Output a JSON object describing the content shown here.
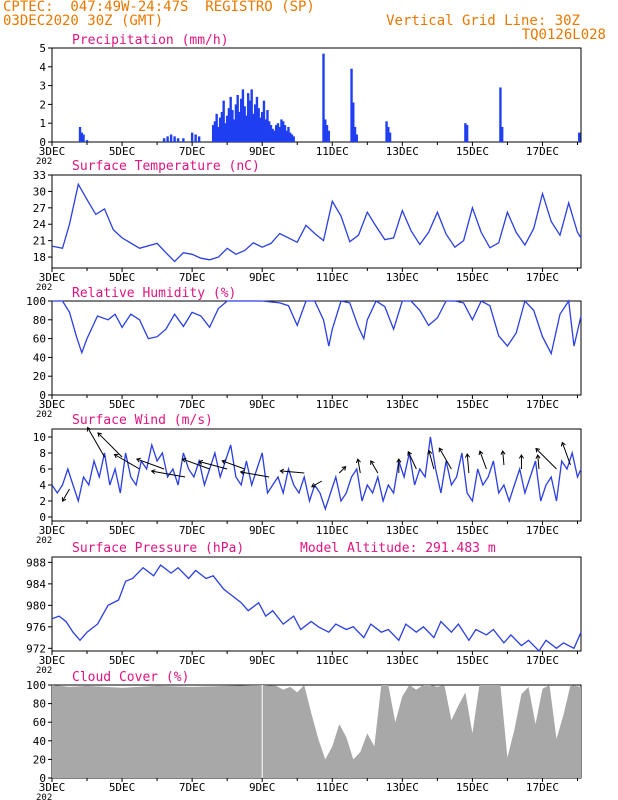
{
  "header": {
    "line1_left": "CPTEC:  047:49W-24:47S  REGISTRO (SP)",
    "line2_left": "03DEC2020 30Z (GMT)",
    "line2_right": "Vertical Grid Line: 30Z",
    "line3_right": "TQ0126L028"
  },
  "colors": {
    "header": "#e87800",
    "panel_title": "#e0147f",
    "series": "#2b3fe0",
    "cloud": "#a8a8a8",
    "bar": "#1f3ff0"
  },
  "x_axis": {
    "range_days": [
      3,
      18.1
    ],
    "labels": [
      "3DEC",
      "5DEC",
      "7DEC",
      "9DEC",
      "11DEC",
      "13DEC",
      "15DEC",
      "17DEC"
    ],
    "label_days": [
      3,
      5,
      7,
      9,
      11,
      13,
      15,
      17
    ],
    "year_fragment": "202"
  },
  "chart_data": [
    {
      "id": "precip",
      "type": "bar",
      "title": "Precipitation (mm/h)",
      "ylim": [
        0,
        5
      ],
      "yticks": [
        0,
        1,
        2,
        3,
        4,
        5
      ],
      "x": [
        3.8,
        3.85,
        3.9,
        4.0,
        6.2,
        6.3,
        6.4,
        6.5,
        6.6,
        6.75,
        7.0,
        7.1,
        7.2,
        7.6,
        7.65,
        7.7,
        7.75,
        7.8,
        7.85,
        7.9,
        7.95,
        8.0,
        8.05,
        8.1,
        8.15,
        8.2,
        8.25,
        8.3,
        8.35,
        8.4,
        8.45,
        8.5,
        8.55,
        8.6,
        8.65,
        8.7,
        8.75,
        8.8,
        8.85,
        8.9,
        8.95,
        9.0,
        9.05,
        9.1,
        9.15,
        9.2,
        9.25,
        9.3,
        9.35,
        9.4,
        9.45,
        9.5,
        9.55,
        9.6,
        9.65,
        9.7,
        9.75,
        9.8,
        9.85,
        9.9,
        10.75,
        10.8,
        10.85,
        10.9,
        11.55,
        11.6,
        11.65,
        11.7,
        12.55,
        12.6,
        12.65,
        14.8,
        14.85,
        15.8,
        15.85,
        18.05
      ],
      "values": [
        0.8,
        0.5,
        0.4,
        0.1,
        0.2,
        0.3,
        0.4,
        0.3,
        0.2,
        0.2,
        0.5,
        0.4,
        0.3,
        0.9,
        1.1,
        1.5,
        0.8,
        1.3,
        1.6,
        2.2,
        1.0,
        1.4,
        1.8,
        2.4,
        1.7,
        1.2,
        2.0,
        2.5,
        1.6,
        2.3,
        2.8,
        1.9,
        1.4,
        2.6,
        2.2,
        2.8,
        1.5,
        2.0,
        2.4,
        1.8,
        1.3,
        1.6,
        2.2,
        1.2,
        1.7,
        1.1,
        0.9,
        0.7,
        0.6,
        0.9,
        1.0,
        0.8,
        1.2,
        1.1,
        0.9,
        0.6,
        0.8,
        0.5,
        0.4,
        0.3,
        4.7,
        1.2,
        0.9,
        0.6,
        3.9,
        2.1,
        0.8,
        0.4,
        1.1,
        0.8,
        0.5,
        1.0,
        0.9,
        2.9,
        0.8,
        0.5
      ]
    },
    {
      "id": "temp",
      "type": "line",
      "title": "Surface Temperature (nC)",
      "ylim": [
        16,
        33
      ],
      "yticks": [
        18,
        21,
        24,
        27,
        30,
        33
      ],
      "x": [
        3.0,
        3.3,
        3.5,
        3.75,
        4.0,
        4.25,
        4.5,
        4.75,
        5.0,
        5.5,
        6.0,
        6.25,
        6.5,
        6.75,
        7.0,
        7.25,
        7.5,
        7.75,
        8.0,
        8.25,
        8.5,
        8.75,
        9.0,
        9.25,
        9.5,
        9.75,
        10.0,
        10.25,
        10.5,
        10.75,
        11.0,
        11.25,
        11.5,
        11.75,
        12.0,
        12.25,
        12.5,
        12.75,
        13.0,
        13.25,
        13.5,
        13.75,
        14.0,
        14.25,
        14.5,
        14.75,
        15.0,
        15.25,
        15.5,
        15.75,
        16.0,
        16.25,
        16.5,
        16.75,
        17.0,
        17.25,
        17.5,
        17.75,
        18.0,
        18.1
      ],
      "values": [
        20,
        19.6,
        24,
        31.3,
        28.5,
        25.8,
        26.8,
        23,
        21.5,
        19.6,
        20.5,
        18.8,
        17.2,
        18.8,
        18.5,
        17.8,
        17.5,
        18,
        19.6,
        18.5,
        19.2,
        20.6,
        19.8,
        20.5,
        22.3,
        21.5,
        20.7,
        23.8,
        22.3,
        21.0,
        28.2,
        25.5,
        20.8,
        22.0,
        26.2,
        23.6,
        21.2,
        21.5,
        26.5,
        22.8,
        20.3,
        22.5,
        26.2,
        22.2,
        19.8,
        21.0,
        27.0,
        22.5,
        19.7,
        20.6,
        26.2,
        22.5,
        20.2,
        23.2,
        29.6,
        24.5,
        22.0,
        27.9,
        22.5,
        21.5
      ]
    },
    {
      "id": "rh",
      "type": "line",
      "title": "Relative Humidity (%)",
      "ylim": [
        0,
        100
      ],
      "yticks": [
        0,
        20,
        40,
        60,
        80,
        100
      ],
      "x": [
        3.0,
        3.3,
        3.5,
        3.7,
        3.85,
        4.0,
        4.3,
        4.6,
        4.8,
        5.0,
        5.25,
        5.5,
        5.75,
        6.0,
        6.25,
        6.5,
        6.75,
        7.0,
        7.25,
        7.5,
        7.75,
        8.0,
        8.5,
        9.0,
        9.5,
        9.75,
        10.0,
        10.25,
        10.5,
        10.75,
        10.9,
        11.0,
        11.25,
        11.5,
        11.75,
        11.9,
        12.0,
        12.25,
        12.5,
        12.75,
        13.0,
        13.25,
        13.5,
        13.75,
        14.0,
        14.25,
        14.5,
        14.75,
        15.0,
        15.25,
        15.5,
        15.75,
        16.0,
        16.25,
        16.5,
        16.75,
        17.0,
        17.25,
        17.5,
        17.75,
        17.9,
        18.1
      ],
      "values": [
        100,
        100,
        88,
        62,
        45,
        60,
        84,
        80,
        86,
        72,
        86,
        80,
        60,
        62,
        70,
        86,
        73,
        88,
        84,
        72,
        92,
        100,
        100,
        100,
        98,
        95,
        74,
        100,
        100,
        80,
        52,
        70,
        100,
        98,
        72,
        60,
        80,
        100,
        94,
        70,
        100,
        100,
        90,
        74,
        82,
        100,
        100,
        98,
        80,
        100,
        95,
        63,
        52,
        66,
        100,
        90,
        62,
        44,
        86,
        100,
        52,
        84
      ]
    },
    {
      "id": "wind",
      "type": "line",
      "title": "Surface Wind (m/s)",
      "ylim": [
        -0.5,
        11
      ],
      "yticks": [
        0,
        2,
        4,
        6,
        8,
        10
      ],
      "x": [
        3.0,
        3.15,
        3.3,
        3.45,
        3.6,
        3.75,
        3.9,
        4.05,
        4.2,
        4.35,
        4.5,
        4.65,
        4.8,
        4.95,
        5.1,
        5.25,
        5.4,
        5.55,
        5.7,
        5.85,
        6.0,
        6.15,
        6.3,
        6.45,
        6.6,
        6.75,
        6.9,
        7.05,
        7.2,
        7.35,
        7.5,
        7.65,
        7.8,
        7.95,
        8.1,
        8.25,
        8.4,
        8.55,
        8.7,
        8.85,
        9.0,
        9.15,
        9.3,
        9.45,
        9.6,
        9.75,
        9.9,
        10.05,
        10.2,
        10.35,
        10.5,
        10.65,
        10.8,
        10.95,
        11.1,
        11.25,
        11.4,
        11.55,
        11.7,
        11.85,
        12.0,
        12.15,
        12.3,
        12.45,
        12.6,
        12.75,
        12.9,
        13.05,
        13.2,
        13.35,
        13.5,
        13.65,
        13.8,
        13.95,
        14.1,
        14.25,
        14.4,
        14.55,
        14.7,
        14.85,
        15.0,
        15.15,
        15.3,
        15.45,
        15.6,
        15.75,
        15.9,
        16.05,
        16.2,
        16.35,
        16.5,
        16.65,
        16.8,
        16.95,
        17.1,
        17.25,
        17.4,
        17.55,
        17.7,
        17.85,
        18.0,
        18.1
      ],
      "values": [
        4,
        3,
        4,
        6,
        4,
        2,
        5,
        4,
        7,
        5,
        8,
        4,
        6,
        3,
        8,
        5,
        4,
        7,
        6,
        9,
        7,
        8,
        5,
        6,
        4,
        8,
        6,
        5,
        7,
        4,
        6,
        8,
        5,
        7,
        9,
        5,
        4,
        7,
        4,
        6,
        8,
        3,
        4,
        5,
        3,
        6,
        4,
        3,
        5,
        2,
        4,
        3,
        1,
        3,
        5,
        2,
        3,
        5,
        6,
        2,
        4,
        3,
        5,
        2,
        4,
        3,
        7,
        5,
        8,
        4,
        6,
        5,
        10,
        6,
        3,
        7,
        4,
        5,
        8,
        3,
        2,
        6,
        4,
        5,
        7,
        3,
        4,
        2,
        4,
        6,
        3,
        5,
        7,
        2,
        4,
        5,
        2,
        7,
        6,
        8,
        5,
        6
      ]
    },
    {
      "id": "wind_vectors",
      "type": "scatter",
      "x": [
        3.5,
        4.5,
        5.0,
        5.5,
        6.2,
        6.8,
        7.5,
        8.0,
        8.5,
        9.2,
        10.2,
        10.7,
        11.2,
        11.8,
        12.3,
        12.9,
        13.4,
        13.9,
        14.4,
        14.9,
        15.4,
        15.9,
        16.4,
        16.9,
        17.4,
        17.8
      ],
      "y": [
        3.5,
        7.5,
        7.5,
        6,
        6,
        5,
        6,
        6,
        6,
        5,
        5.5,
        4.5,
        5.5,
        5.5,
        5.5,
        5.5,
        6,
        6,
        6,
        5.5,
        6,
        6.5,
        6,
        6,
        6,
        6.5
      ],
      "angle_deg": [
        240,
        120,
        135,
        150,
        160,
        170,
        160,
        165,
        160,
        170,
        175,
        210,
        45,
        100,
        120,
        90,
        115,
        105,
        120,
        95,
        110,
        95,
        90,
        95,
        135,
        110
      ],
      "length_ms": [
        2,
        6,
        6,
        5,
        5,
        6,
        5,
        5,
        4,
        5,
        4,
        1.5,
        1,
        2,
        2,
        2,
        3,
        3,
        4,
        3,
        3,
        2,
        2,
        2,
        5,
        4
      ]
    },
    {
      "id": "pressure",
      "type": "line",
      "title": "Surface Pressure (hPa)",
      "annotation": "Model Altitude: 291.483 m",
      "ylim": [
        971.5,
        989
      ],
      "yticks": [
        972,
        976,
        980,
        984,
        988
      ],
      "x": [
        3.0,
        3.2,
        3.4,
        3.6,
        3.8,
        4.0,
        4.3,
        4.6,
        4.9,
        5.1,
        5.3,
        5.6,
        5.9,
        6.1,
        6.4,
        6.6,
        6.9,
        7.1,
        7.4,
        7.6,
        7.9,
        8.1,
        8.4,
        8.6,
        8.9,
        9.1,
        9.3,
        9.6,
        9.9,
        10.1,
        10.4,
        10.6,
        10.9,
        11.1,
        11.4,
        11.6,
        11.9,
        12.1,
        12.4,
        12.6,
        12.9,
        13.1,
        13.4,
        13.6,
        13.9,
        14.1,
        14.4,
        14.6,
        14.9,
        15.1,
        15.4,
        15.6,
        15.9,
        16.1,
        16.4,
        16.6,
        16.9,
        17.1,
        17.4,
        17.6,
        17.9,
        18.1
      ],
      "values": [
        977.5,
        978,
        977,
        975,
        973.5,
        975,
        976.5,
        980,
        981,
        984.5,
        985,
        987,
        985.5,
        987.5,
        986,
        987,
        985,
        986.5,
        985,
        985.5,
        983,
        982,
        980.5,
        979,
        980.5,
        978,
        979,
        976.5,
        978,
        975.5,
        977,
        976,
        975,
        976.5,
        975.5,
        976,
        974,
        976.5,
        975,
        975.5,
        973.5,
        976.5,
        975,
        976,
        974,
        977,
        975,
        976.5,
        973.5,
        975.5,
        974.5,
        975.5,
        973,
        974.5,
        972.5,
        973.5,
        971.5,
        973.5,
        972,
        973,
        972,
        975
      ]
    },
    {
      "id": "cloud",
      "type": "area",
      "title": "Cloud Cover (%)",
      "ylim": [
        0,
        100
      ],
      "yticks": [
        0,
        20,
        40,
        60,
        80,
        100
      ],
      "x": [
        3.0,
        3.5,
        4.0,
        5.0,
        6.0,
        7.0,
        8.0,
        9.0,
        9.4,
        9.6,
        9.8,
        10.0,
        10.2,
        10.4,
        10.6,
        10.8,
        11.0,
        11.2,
        11.4,
        11.6,
        11.8,
        12.0,
        12.2,
        12.4,
        12.6,
        12.8,
        13.0,
        13.2,
        13.4,
        13.6,
        13.8,
        14.0,
        14.2,
        14.4,
        14.6,
        14.8,
        15.0,
        15.2,
        15.4,
        15.6,
        15.8,
        16.0,
        16.2,
        16.4,
        16.6,
        16.8,
        17.0,
        17.2,
        17.4,
        17.6,
        17.8,
        18.1
      ],
      "values": [
        100,
        98,
        99,
        97,
        99,
        98,
        99,
        100,
        99,
        95,
        98,
        92,
        100,
        70,
        42,
        20,
        34,
        58,
        44,
        20,
        28,
        48,
        34,
        100,
        100,
        60,
        88,
        100,
        95,
        100,
        100,
        98,
        100,
        62,
        78,
        92,
        48,
        100,
        100,
        100,
        100,
        22,
        52,
        90,
        98,
        58,
        96,
        100,
        42,
        68,
        100,
        98
      ]
    }
  ]
}
